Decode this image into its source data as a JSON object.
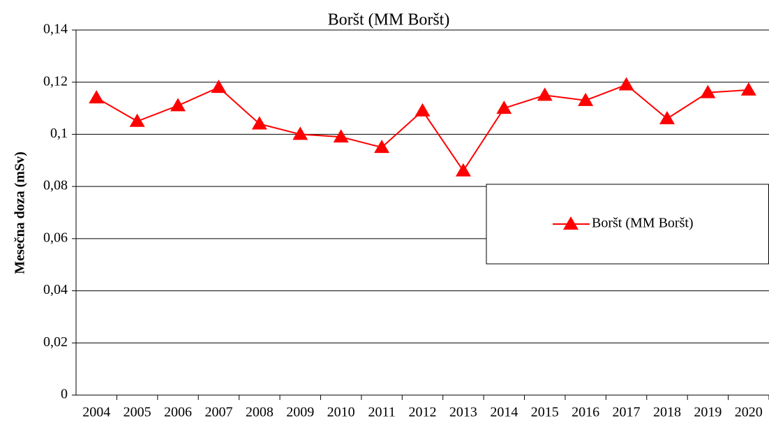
{
  "chart_data": {
    "type": "line",
    "title": "Boršt (MM Boršt)",
    "y_label": "Mesečna doza (mSv)",
    "categories": [
      "2004",
      "2005",
      "2006",
      "2007",
      "2008",
      "2009",
      "2010",
      "2011",
      "2012",
      "2013",
      "2014",
      "2015",
      "2016",
      "2017",
      "2018",
      "2019",
      "2020"
    ],
    "series": [
      {
        "name": "Boršt (MM Boršt)",
        "color": "#ff0000",
        "values": [
          0.114,
          0.105,
          0.111,
          0.118,
          0.104,
          0.1,
          0.099,
          0.095,
          0.109,
          0.086,
          0.11,
          0.115,
          0.113,
          0.119,
          0.106,
          0.116,
          0.117
        ]
      }
    ],
    "ylim": [
      0,
      0.14
    ],
    "yticks": [
      0,
      {
        "value": 0.02,
        "label": "0,02"
      },
      {
        "value": 0.04,
        "label": "0,04"
      },
      {
        "value": 0.06,
        "label": "0,06"
      },
      {
        "value": 0.08,
        "label": "0,08"
      },
      {
        "value": 0.1,
        "label": "0,1"
      },
      {
        "value": 0.12,
        "label": "0,12"
      },
      {
        "value": 0.14,
        "label": "0,14"
      }
    ],
    "grid": true,
    "legend": "right"
  }
}
